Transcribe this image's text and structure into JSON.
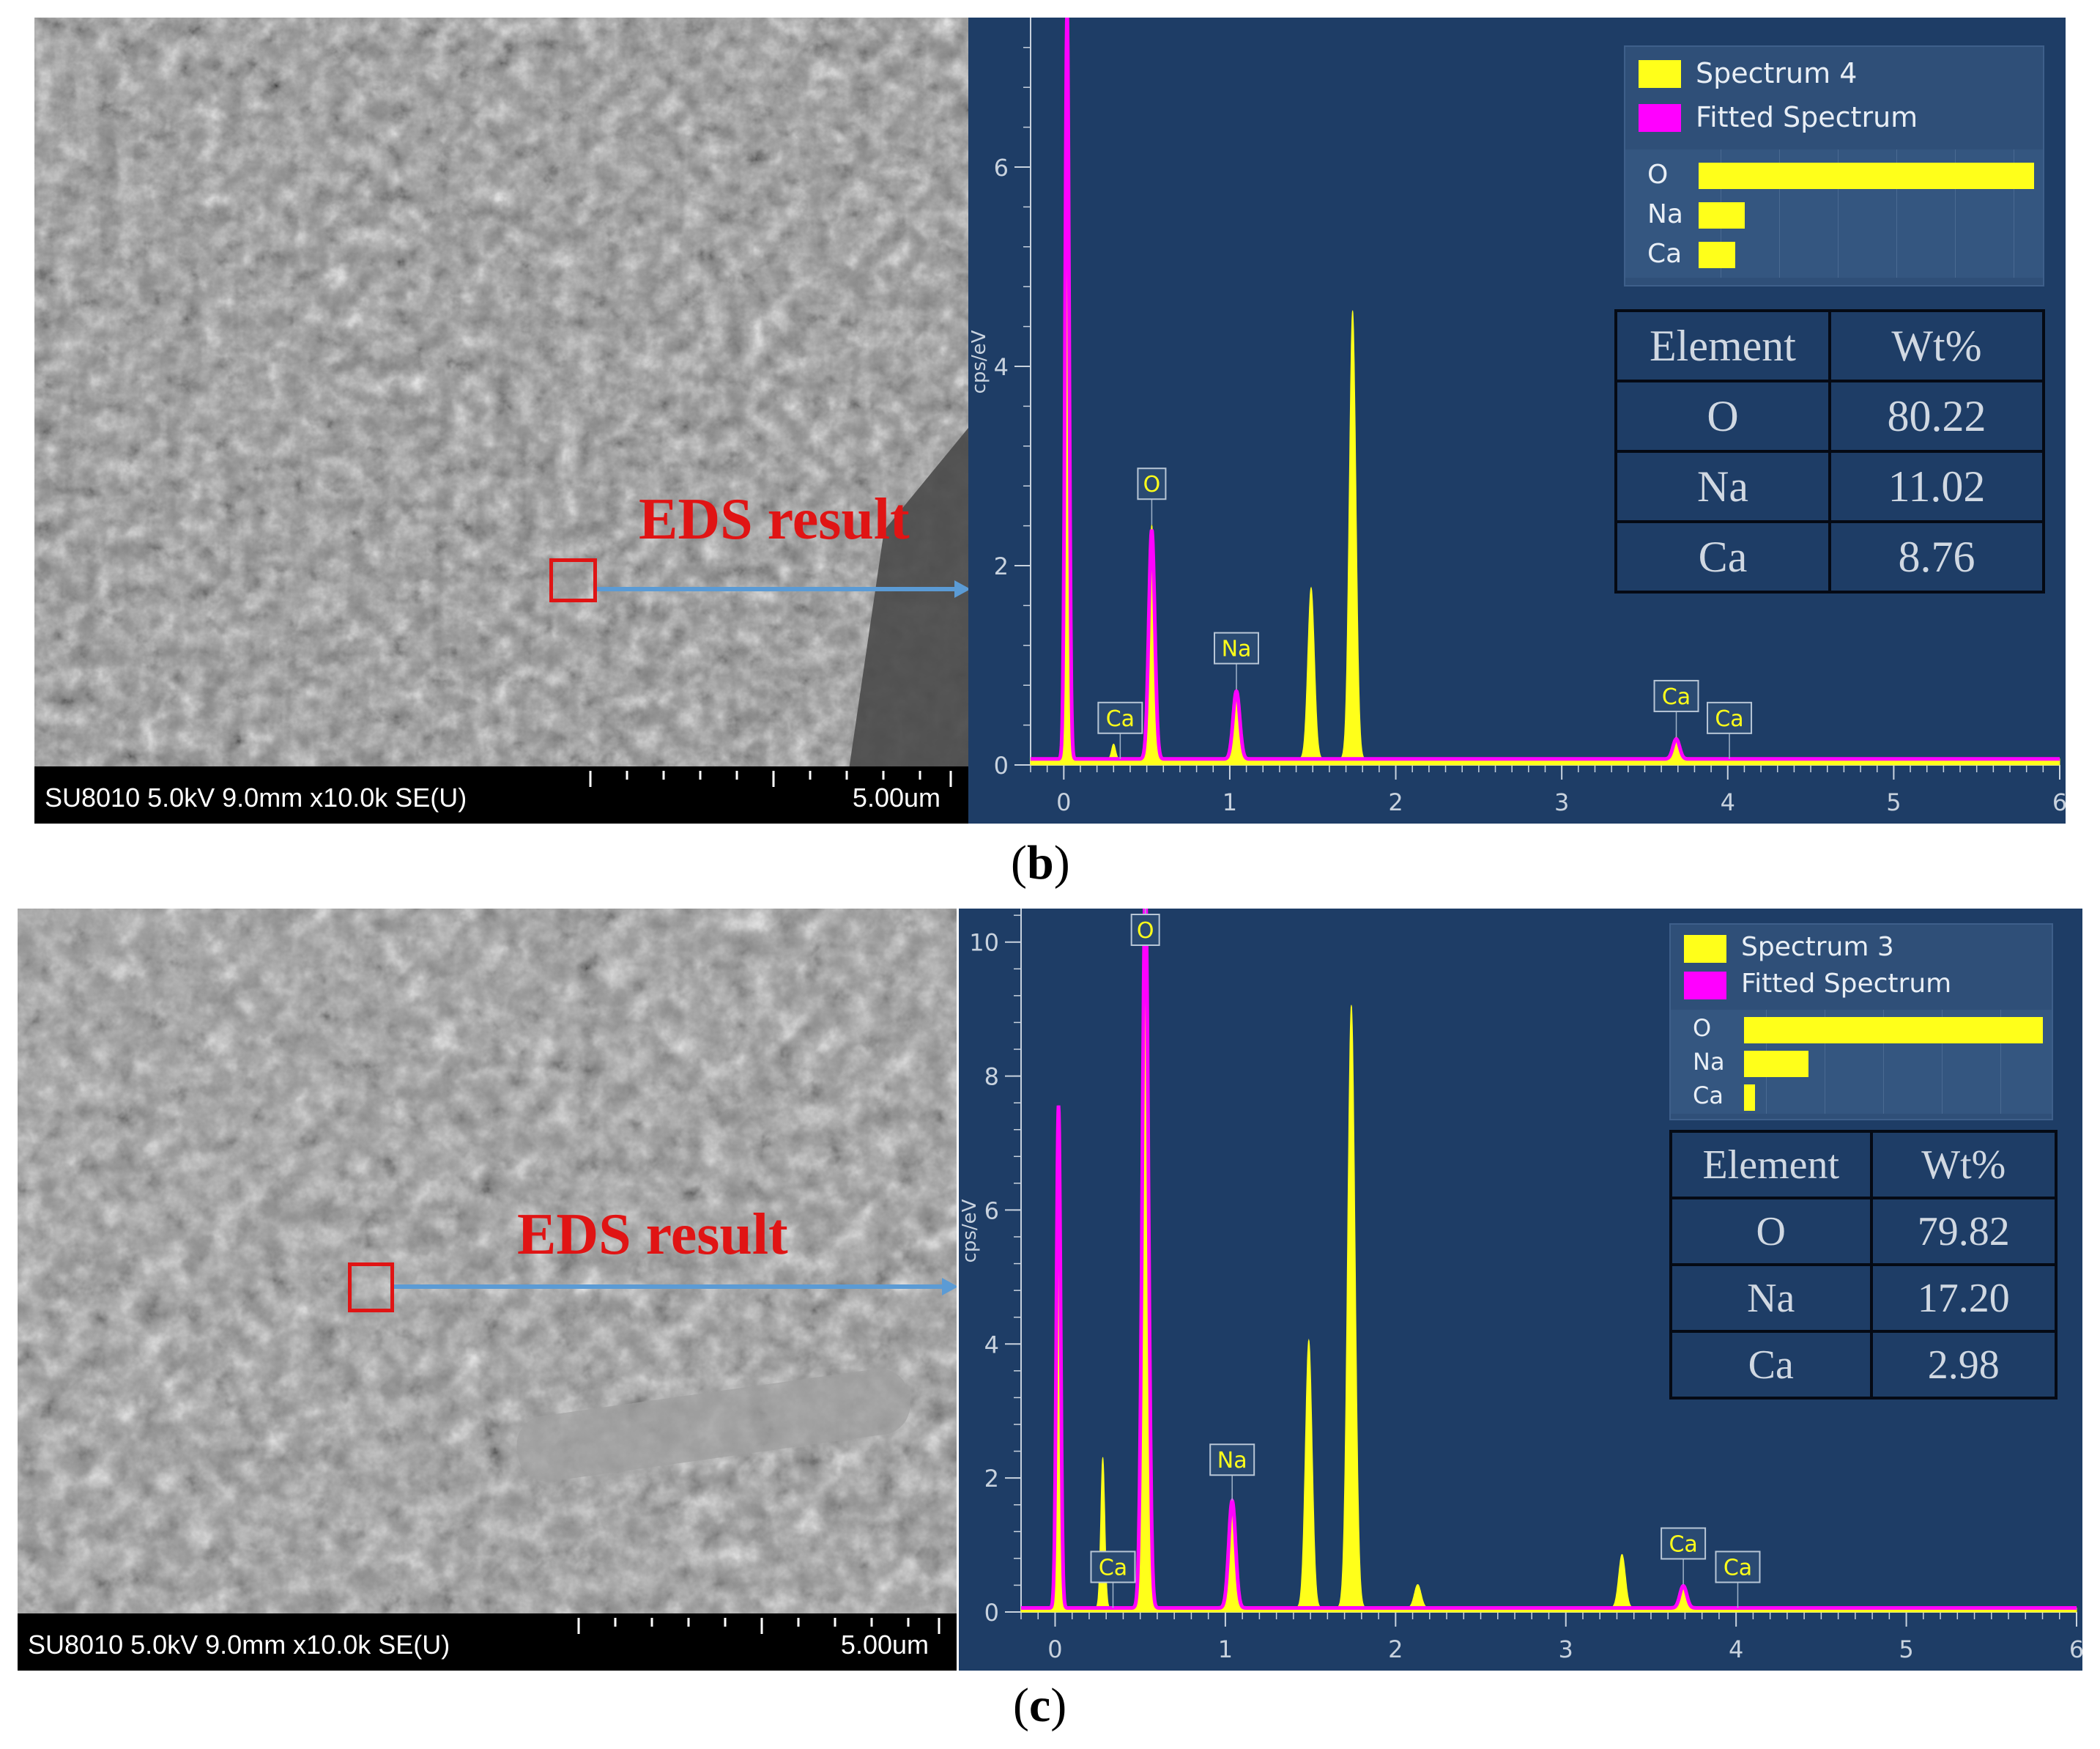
{
  "panels": [
    {
      "id": "b",
      "caption_letter": "b",
      "sem": {
        "info": "SU8010 5.0kV 9.0mm x10.0k SE(U)",
        "scale": "5.00um",
        "eds_label": "EDS result"
      },
      "spectrum": {
        "y_axis_label": "cps/eV",
        "legend": [
          {
            "label": "Spectrum 4",
            "color": "#ffff1a"
          },
          {
            "label": "Fitted Spectrum",
            "color": "#ff00ff"
          }
        ],
        "bars": [
          {
            "element": "O",
            "value": 80.22
          },
          {
            "element": "Na",
            "value": 11.02
          },
          {
            "element": "Ca",
            "value": 8.76
          }
        ],
        "table": {
          "headers": [
            "Element",
            "Wt%"
          ],
          "rows": [
            [
              "O",
              "80.22"
            ],
            [
              "Na",
              "11.02"
            ],
            [
              "Ca",
              "8.76"
            ]
          ]
        },
        "peak_labels": [
          {
            "text": "O",
            "x": 0.53
          },
          {
            "text": "Na",
            "x": 1.04
          },
          {
            "text": "Ca",
            "x": 0.34
          },
          {
            "text": "Ca",
            "x": 3.69
          },
          {
            "text": "Ca",
            "x": 4.01
          }
        ],
        "chart_data": {
          "type": "area",
          "x_ticks": [
            "0",
            "1",
            "2",
            "3",
            "4",
            "5",
            "6"
          ],
          "y_ticks": [
            "0",
            "2",
            "4",
            "6"
          ],
          "ylim": [
            0,
            7.5
          ],
          "xlim": [
            -0.2,
            6
          ],
          "ylabel": "cps/eV",
          "series": [
            {
              "name": "Spectrum 4",
              "color": "#ffff1a",
              "peaks": [
                {
                  "x": 0.02,
                  "y": 7.5,
                  "w": 0.012
                },
                {
                  "x": 0.3,
                  "y": 0.15,
                  "w": 0.012
                },
                {
                  "x": 0.53,
                  "y": 2.35,
                  "w": 0.018
                },
                {
                  "x": 1.04,
                  "y": 0.7,
                  "w": 0.02
                },
                {
                  "x": 1.49,
                  "y": 1.72,
                  "w": 0.02
                },
                {
                  "x": 1.74,
                  "y": 4.5,
                  "w": 0.02
                },
                {
                  "x": 3.69,
                  "y": 0.22,
                  "w": 0.02
                }
              ]
            },
            {
              "name": "Fitted Spectrum",
              "color": "#ff00ff",
              "peaks": [
                {
                  "x": 0.02,
                  "y": 7.5,
                  "w": 0.012
                },
                {
                  "x": 0.53,
                  "y": 2.3,
                  "w": 0.018
                },
                {
                  "x": 1.04,
                  "y": 0.68,
                  "w": 0.02
                },
                {
                  "x": 3.69,
                  "y": 0.2,
                  "w": 0.02
                }
              ]
            }
          ]
        }
      }
    },
    {
      "id": "c",
      "caption_letter": "c",
      "sem": {
        "info": "SU8010 5.0kV 9.0mm x10.0k SE(U)",
        "scale": "5.00um",
        "eds_label": "EDS result"
      },
      "spectrum": {
        "y_axis_label": "cps/eV",
        "legend": [
          {
            "label": "Spectrum 3",
            "color": "#ffff1a"
          },
          {
            "label": "Fitted Spectrum",
            "color": "#ff00ff"
          }
        ],
        "bars": [
          {
            "element": "O",
            "value": 79.82
          },
          {
            "element": "Na",
            "value": 17.2
          },
          {
            "element": "Ca",
            "value": 2.98
          }
        ],
        "table": {
          "headers": [
            "Element",
            "Wt%"
          ],
          "rows": [
            [
              "O",
              "79.82"
            ],
            [
              "Na",
              "17.20"
            ],
            [
              "Ca",
              "2.98"
            ]
          ]
        },
        "peak_labels": [
          {
            "text": "O",
            "x": 0.53
          },
          {
            "text": "Na",
            "x": 1.04
          },
          {
            "text": "Ca",
            "x": 0.34
          },
          {
            "text": "Ca",
            "x": 3.69
          },
          {
            "text": "Ca",
            "x": 4.01
          }
        ],
        "chart_data": {
          "type": "area",
          "x_ticks": [
            "0",
            "1",
            "2",
            "3",
            "4",
            "5",
            "6"
          ],
          "y_ticks": [
            "0",
            "2",
            "4",
            "6",
            "8",
            "10"
          ],
          "ylim": [
            0,
            10.5
          ],
          "xlim": [
            -0.2,
            6
          ],
          "ylabel": "cps/eV",
          "series": [
            {
              "name": "Spectrum 3",
              "color": "#ffff1a",
              "peaks": [
                {
                  "x": 0.02,
                  "y": 7.5,
                  "w": 0.012
                },
                {
                  "x": 0.28,
                  "y": 2.25,
                  "w": 0.012
                },
                {
                  "x": 0.53,
                  "y": 10.8,
                  "w": 0.018
                },
                {
                  "x": 1.04,
                  "y": 1.6,
                  "w": 0.02
                },
                {
                  "x": 1.49,
                  "y": 4.0,
                  "w": 0.02
                },
                {
                  "x": 1.74,
                  "y": 9.0,
                  "w": 0.022
                },
                {
                  "x": 2.13,
                  "y": 0.35,
                  "w": 0.02
                },
                {
                  "x": 3.33,
                  "y": 0.8,
                  "w": 0.02
                },
                {
                  "x": 3.69,
                  "y": 0.35,
                  "w": 0.02
                }
              ]
            },
            {
              "name": "Fitted Spectrum",
              "color": "#ff00ff",
              "peaks": [
                {
                  "x": 0.02,
                  "y": 7.5,
                  "w": 0.012
                },
                {
                  "x": 0.53,
                  "y": 10.8,
                  "w": 0.018
                },
                {
                  "x": 1.04,
                  "y": 1.6,
                  "w": 0.02
                },
                {
                  "x": 3.69,
                  "y": 0.33,
                  "w": 0.02
                }
              ]
            }
          ]
        }
      }
    }
  ]
}
